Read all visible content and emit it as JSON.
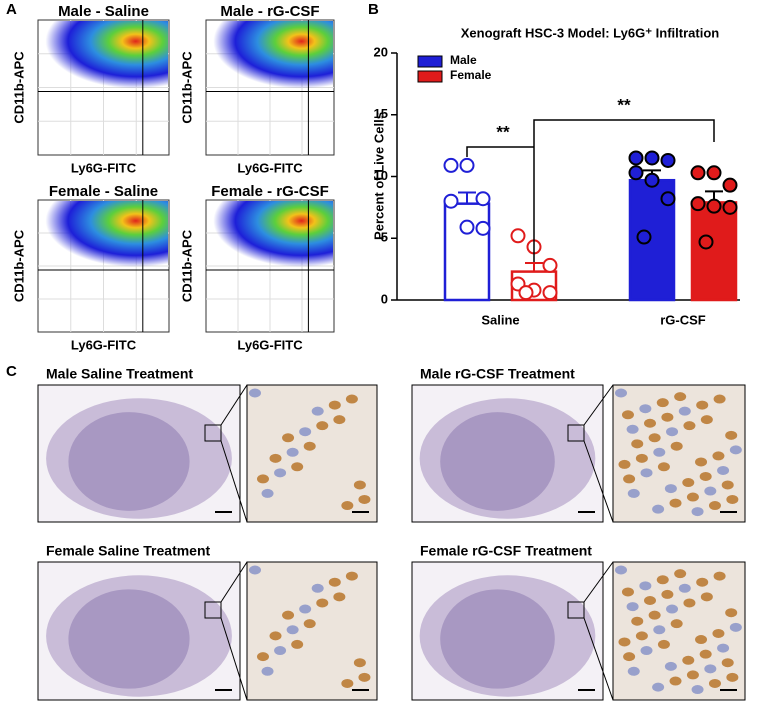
{
  "panel_labels": [
    "A",
    "B",
    "C"
  ],
  "panel_a": {
    "plots": [
      {
        "title": "Male - Saline",
        "ylabel": "CD11b-APC",
        "xlabel": "Ly6G-FITC"
      },
      {
        "title": "Male - rG-CSF",
        "ylabel": "CD11b-APC",
        "xlabel": "Ly6G-FITC"
      },
      {
        "title": "Female - Saline",
        "ylabel": "CD11b-APC",
        "xlabel": "Ly6G-FITC"
      },
      {
        "title": "Female - rG-CSF",
        "ylabel": "CD11b-APC",
        "xlabel": "Ly6G-FITC"
      }
    ]
  },
  "chart_data": {
    "type": "bar",
    "title": "Xenograft HSC-3 Model: Ly6G⁺ Infiltration",
    "ylabel": "Percent of Live Cells",
    "categories": [
      "Saline",
      "rG-CSF"
    ],
    "series": [
      {
        "name": "Male",
        "color": "#1f1fd6",
        "values": [
          7.8,
          9.7
        ],
        "errors": [
          0.9,
          0.8
        ],
        "points": [
          [
            10.9,
            10.9,
            8.2,
            8.0,
            5.9,
            5.8
          ],
          [
            11.5,
            11.5,
            11.3,
            10.3,
            9.7,
            8.2,
            5.1
          ]
        ]
      },
      {
        "name": "Female",
        "color": "#e01b1b",
        "values": [
          2.3,
          7.9
        ],
        "errors": [
          0.7,
          0.9
        ],
        "points": [
          [
            5.2,
            4.3,
            2.8,
            1.3,
            0.8,
            0.6,
            0.6
          ],
          [
            10.3,
            10.3,
            9.3,
            7.8,
            7.6,
            7.5,
            4.7
          ]
        ]
      }
    ],
    "ylim": [
      0,
      20
    ],
    "yticks": [
      0,
      5,
      10,
      15,
      20
    ],
    "legend": "upper-left",
    "annotations": [
      "**",
      "**"
    ]
  },
  "panel_c": {
    "titles": [
      "Male Saline Treatment",
      "Male rG-CSF Treatment",
      "Female Saline Treatment",
      "Female rG-CSF Treatment"
    ]
  }
}
